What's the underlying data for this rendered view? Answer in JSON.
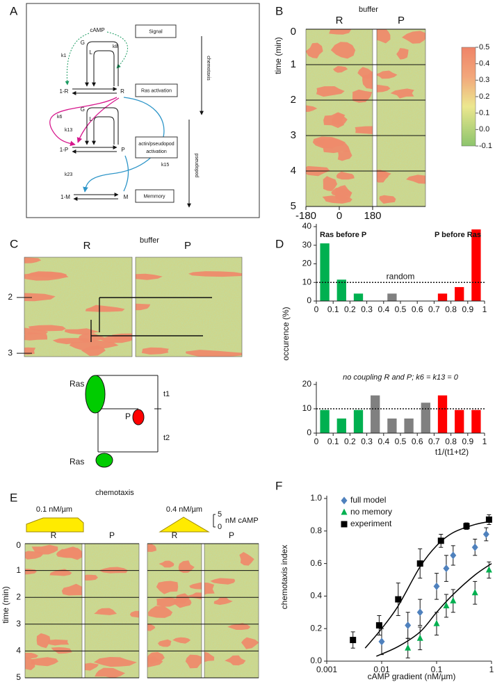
{
  "panels": {
    "A": {
      "label": "A",
      "nodes": {
        "camp": "cAMP",
        "g1": "G",
        "l1": "L",
        "r_inactive": "1-R",
        "r_active": "R",
        "g2": "G",
        "l2": "L",
        "p_inactive": "1-P",
        "p_active": "P",
        "m_inactive": "1-M",
        "m_active": "M"
      },
      "rates": [
        "k1",
        "k8",
        "k6",
        "k13",
        "k15",
        "k23"
      ],
      "boxes": [
        {
          "lines": [
            "Signal"
          ]
        },
        {
          "lines": [
            "Ras activation"
          ]
        },
        {
          "lines": [
            "actin/pseudopod",
            "activation"
          ]
        },
        {
          "lines": [
            "Memmory"
          ]
        }
      ],
      "arrows": [
        "chemotaxis",
        "pseudopod"
      ]
    },
    "B": {
      "label": "B",
      "title": "buffer",
      "columns": [
        "R",
        "P"
      ],
      "y_label": "time (min)",
      "ylim": [
        0,
        5
      ],
      "yticks": [
        0,
        1,
        2,
        3,
        4,
        5
      ],
      "xlim": [
        -180,
        180
      ],
      "xticks": [
        -180,
        0,
        180
      ],
      "colorbar": {
        "lim": [
          -0.1,
          0.5
        ],
        "ticks": [
          0.5,
          0.4,
          0.3,
          0.2,
          0.1,
          {
            "value": 0,
            "label": "0.0"
          },
          -0.1
        ]
      }
    },
    "C": {
      "label": "C",
      "title": "buffer",
      "columns": [
        "R",
        "P"
      ],
      "ylim": [
        1.28,
        3.06
      ],
      "yticks": [
        2,
        3
      ],
      "diagram": {
        "ras_top": "Ras",
        "p": "P",
        "ras_bottom": "Ras",
        "t1": "t1",
        "t2": "t2"
      }
    },
    "E": {
      "label": "E",
      "title": "chemotaxis",
      "gradients": [
        "0.1 nM/µm",
        "0.4 nM/µm"
      ],
      "scale": {
        "ticks": [
          5,
          0
        ],
        "unit": "nM cAMP"
      },
      "columns": [
        "R",
        "P",
        "R",
        "P"
      ],
      "y_label": "time (min)",
      "ylim": [
        0,
        5
      ],
      "yticks": [
        0,
        1,
        2,
        3,
        4,
        5
      ]
    }
  },
  "chart_data": [
    {
      "type": "bar",
      "panel_label": "D",
      "y_label": "occurence (%)",
      "xlim": [
        0,
        1
      ],
      "xticks": [
        0,
        0.1,
        0.2,
        0.3,
        0.4,
        0.5,
        0.6,
        0.7,
        0.8,
        0.9,
        1
      ],
      "ylim": [
        0,
        40
      ],
      "yticks": [
        0,
        10,
        20,
        30,
        40
      ],
      "reference": {
        "value": 10,
        "label": "random"
      },
      "series": [
        {
          "name": "Ras before P",
          "color": "#00b050",
          "x": [
            0.05,
            0.15,
            0.25
          ],
          "values": [
            31,
            11.5,
            4
          ]
        },
        {
          "color": "#808080",
          "x": [
            0.45
          ],
          "values": [
            4
          ]
        },
        {
          "name": "P before Ras",
          "color": "#ff0000",
          "x": [
            0.75,
            0.85,
            0.95
          ],
          "values": [
            4,
            7.5,
            38.5
          ]
        }
      ]
    },
    {
      "type": "bar",
      "title": "no coupling R and P; k6 = k13 = 0",
      "x_label": "t1/(t1+t2)",
      "xlim": [
        0,
        1
      ],
      "xticks": [
        0,
        0.1,
        0.2,
        0.3,
        0.4,
        0.5,
        0.6,
        0.7,
        0.8,
        0.9,
        1
      ],
      "ylim": [
        0,
        20
      ],
      "yticks": [
        0,
        10,
        20
      ],
      "reference": {
        "value": 10
      },
      "series": [
        {
          "color": "#00b050",
          "x": [
            0.05,
            0.15,
            0.25
          ],
          "values": [
            9.5,
            6,
            9.5
          ]
        },
        {
          "color": "#808080",
          "x": [
            0.35,
            0.45,
            0.55,
            0.65
          ],
          "values": [
            15.5,
            6,
            6,
            12.5
          ]
        },
        {
          "color": "#ff0000",
          "x": [
            0.75,
            0.85,
            0.95
          ],
          "values": [
            15.5,
            9.5,
            9.5
          ]
        }
      ]
    },
    {
      "type": "scatter",
      "panel_label": "F",
      "x_label": "cAMP gradient (nM/µm)",
      "y_label": "chemotaxis index",
      "xlim": [
        0.001,
        1
      ],
      "xticks": [
        0.001,
        0.01,
        0.1,
        1
      ],
      "log_x": true,
      "ylim": [
        0,
        1
      ],
      "yticks": [
        {
          "value": 0,
          "label": "0.0"
        },
        0.2,
        0.4,
        0.6,
        0.8,
        {
          "value": 1,
          "label": "1.0"
        }
      ],
      "legend": "upper left",
      "series": [
        {
          "name": "full model",
          "color": "#4f81bd",
          "marker": "diamond",
          "x": [
            0.01,
            0.03,
            0.05,
            0.1,
            0.15,
            0.2,
            0.5,
            0.8
          ],
          "values": [
            0.12,
            0.22,
            0.3,
            0.46,
            0.57,
            0.65,
            0.7,
            0.78
          ],
          "errors": [
            0.08,
            0.08,
            0.08,
            0.08,
            0.08,
            0.06,
            0.05,
            0.04
          ]
        },
        {
          "name": "no memory",
          "color": "#00b050",
          "marker": "triangle",
          "x": [
            0.03,
            0.05,
            0.1,
            0.15,
            0.2,
            0.5,
            0.9
          ],
          "values": [
            0.08,
            0.14,
            0.23,
            0.34,
            0.37,
            0.42,
            0.56
          ],
          "errors": [
            0.06,
            0.07,
            0.07,
            0.07,
            0.07,
            0.07,
            0.05
          ]
        },
        {
          "name": "experiment",
          "color": "#000000",
          "marker": "square",
          "x": [
            0.003,
            0.009,
            0.02,
            0.05,
            0.12,
            0.35,
            0.9
          ],
          "values": [
            0.13,
            0.22,
            0.38,
            0.6,
            0.74,
            0.83,
            0.87
          ],
          "errors": [
            0.05,
            0.06,
            0.1,
            0.09,
            0.04,
            0.02,
            0.03
          ]
        }
      ],
      "fits": [
        {
          "color": "#000000",
          "x": [
            0.005,
            0.01,
            0.02,
            0.05,
            0.1,
            0.2,
            0.5,
            1
          ],
          "values": [
            0.08,
            0.2,
            0.34,
            0.58,
            0.71,
            0.79,
            0.84,
            0.86
          ]
        },
        {
          "color": "#000000",
          "x": [
            0.008,
            0.02,
            0.05,
            0.1,
            0.2,
            0.5,
            1
          ],
          "values": [
            0.03,
            0.09,
            0.18,
            0.3,
            0.41,
            0.53,
            0.6
          ]
        }
      ]
    }
  ]
}
